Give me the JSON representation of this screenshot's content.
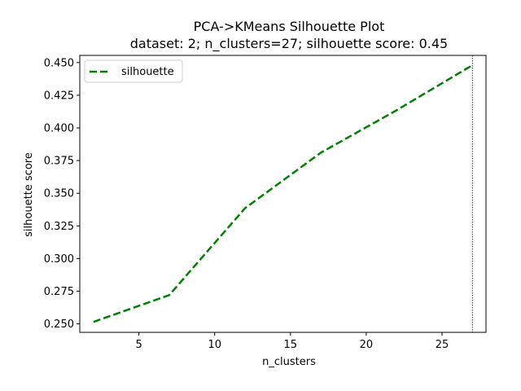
{
  "chart_data": {
    "type": "line",
    "title": "PCA->KMeans Silhouette Plot",
    "subtitle": "dataset: 2; n_clusters=27; silhouette score: 0.45",
    "xlabel": "n_clusters",
    "ylabel": "silhouette score",
    "xlim": [
      1.1,
      27.9
    ],
    "ylim": [
      0.2435,
      0.4555
    ],
    "x_ticks": [
      5,
      10,
      15,
      20,
      25
    ],
    "x_tick_labels": [
      "5",
      "10",
      "15",
      "20",
      "25"
    ],
    "y_ticks": [
      0.25,
      0.275,
      0.3,
      0.325,
      0.35,
      0.375,
      0.4,
      0.425,
      0.45
    ],
    "y_tick_labels": [
      "0.250",
      "0.275",
      "0.300",
      "0.325",
      "0.350",
      "0.375",
      "0.400",
      "0.425",
      "0.450"
    ],
    "grid": false,
    "legend_position": "top-left",
    "series": [
      {
        "name": "silhouette",
        "color": "#008000",
        "line_style": "dashed",
        "x": [
          2,
          7,
          12,
          17,
          22,
          27
        ],
        "y": [
          0.2515,
          0.272,
          0.3385,
          0.381,
          0.4135,
          0.448
        ]
      }
    ],
    "vline": {
      "x": 27,
      "color": "#000000",
      "line_style": "dotted"
    }
  }
}
